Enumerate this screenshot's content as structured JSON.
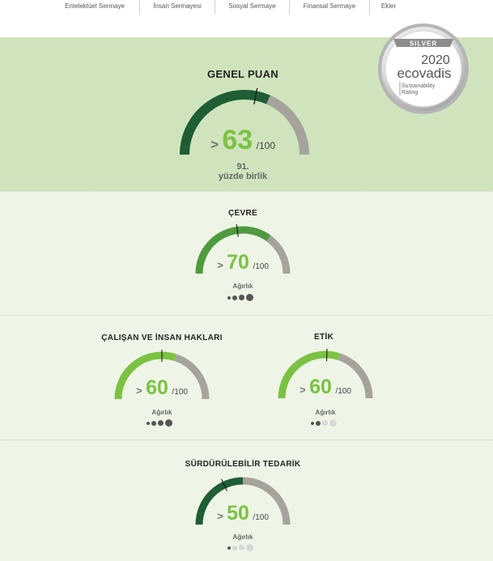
{
  "nav": {
    "items": [
      "Entelektüel Sermaye",
      "İnsan Sermayesi",
      "Sosyal Sermaye",
      "Finansal Sermaye",
      "Ekler"
    ]
  },
  "badge": {
    "level": "SILVER",
    "year": "2020",
    "brand": "ecovadis",
    "line1": "Sustainability",
    "line2": "Rating"
  },
  "overall": {
    "title": "GENEL PUAN",
    "gt": ">",
    "score": "63",
    "max": "/100",
    "score_value": 63,
    "benchmark": 56,
    "percentile_line1": "91.",
    "percentile_line2": "yüzde birlik"
  },
  "themes": [
    {
      "title": "ÇEVRE",
      "gt": ">",
      "score": "70",
      "max": "/100",
      "score_value": 70,
      "benchmark": 46,
      "weight_label": "Ağırlık",
      "weight": 3
    },
    {
      "title": "ÇALIŞAN VE İNSAN HAKLARI",
      "gt": ">",
      "score": "60",
      "max": "/100",
      "score_value": 60,
      "benchmark": 50,
      "weight_label": "Ağırlık",
      "weight": 3
    },
    {
      "title": "ETİK",
      "gt": ">",
      "score": "60",
      "max": "/100",
      "score_value": 60,
      "benchmark": 51,
      "weight_label": "Ağırlık",
      "weight": 1
    },
    {
      "title": "SÜRDÜRÜLEBİLİR TEDARİK",
      "gt": ">",
      "score": "50",
      "max": "/100",
      "score_value": 50,
      "benchmark": 36,
      "weight_label": "Ağırlık",
      "weight": 0
    }
  ],
  "colors": {
    "dark_green": "#1f5d35",
    "mid_green": "#4f9a3f",
    "light_green": "#7cc242",
    "gray_arc": "#a6a39c",
    "dot_dark": "#555555",
    "dot_light": "#d8d8d8"
  }
}
